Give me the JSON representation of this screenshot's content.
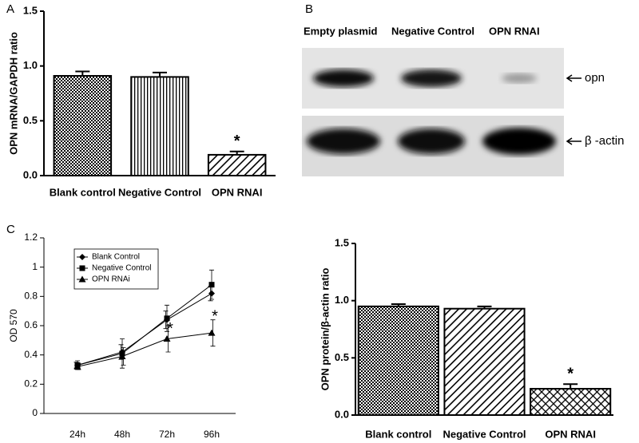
{
  "chart_data": [
    {
      "type": "bar",
      "panel_label": "A",
      "ylabel": "OPN mRNA/GAPDH ratio",
      "categories": [
        "Blank control",
        "Negative Control",
        "OPN RNAI"
      ],
      "values": [
        0.91,
        0.9,
        0.19
      ],
      "errors": [
        0.04,
        0.04,
        0.03
      ],
      "annotations": [
        null,
        null,
        "*"
      ],
      "color": "#000000",
      "ylim": [
        0,
        1.5
      ],
      "yticks": [
        {
          "value": 0,
          "label": "0.0"
        },
        0.5,
        {
          "value": 1,
          "label": "1.0"
        },
        1.5
      ]
    },
    {
      "type": "line",
      "panel_label": "C",
      "ylabel": "OD 570",
      "categories": [
        "24h",
        "48h",
        "72h",
        "96h"
      ],
      "series": [
        {
          "name": "Blank Control",
          "color": "#000000",
          "values": [
            0.33,
            0.42,
            0.64,
            0.82
          ],
          "errors": [
            0.02,
            0.05,
            0.06,
            0.05
          ]
        },
        {
          "name": "Negative Control",
          "color": "#000000",
          "values": [
            0.33,
            0.41,
            0.65,
            0.88
          ],
          "errors": [
            0.03,
            0.1,
            0.09,
            0.1
          ]
        },
        {
          "name": "OPN RNAi",
          "color": "#000000",
          "values": [
            0.32,
            0.39,
            0.51,
            0.55
          ],
          "errors": [
            0.02,
            0.06,
            0.09,
            0.09
          ]
        }
      ],
      "annotations": [
        null,
        null,
        "*",
        "*"
      ],
      "ylim": [
        0,
        1.2
      ],
      "yticks": [
        0,
        0.2,
        0.4,
        0.6,
        0.8,
        1,
        1.2
      ]
    },
    {
      "type": "bar",
      "ylabel": "OPN protein/β-actin ratio",
      "categories": [
        "Blank control",
        "Negative Control",
        "OPN RNAI"
      ],
      "values": [
        0.95,
        0.93,
        0.23
      ],
      "errors": [
        0.02,
        0.02,
        0.04
      ],
      "annotations": [
        null,
        null,
        "*"
      ],
      "color": "#000000",
      "ylim": [
        0,
        1.5
      ],
      "yticks": [
        {
          "value": 0,
          "label": "0.0"
        },
        0.5,
        {
          "value": 1,
          "label": "1.0"
        },
        1.5
      ]
    }
  ],
  "blot": {
    "panel_label": "B",
    "lanes": [
      "Empty plasmid",
      "Negative Control",
      "OPN RNAI"
    ],
    "rows": [
      "opn",
      "β -actin"
    ]
  }
}
